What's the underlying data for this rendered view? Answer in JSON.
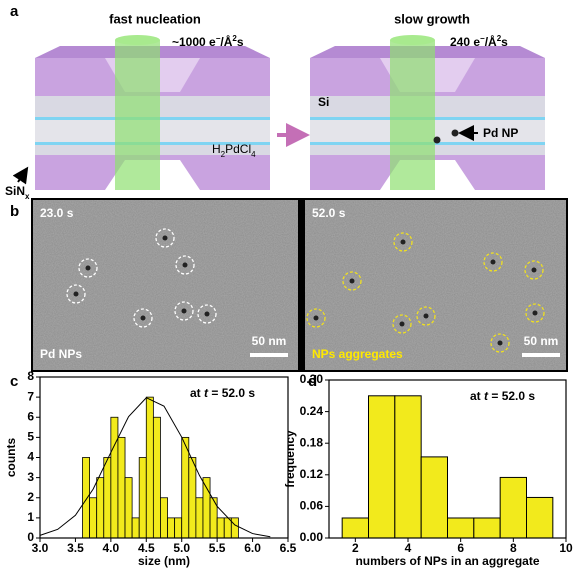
{
  "panel_labels": [
    "a",
    "b",
    "c",
    "d"
  ],
  "panel_a": {
    "left_title": "fast nucleation",
    "right_title": "slow growth",
    "left_dose": [
      "~1000 e",
      "−",
      "/Å",
      "2",
      "s"
    ],
    "right_dose": [
      "240 e",
      "−",
      "/Å",
      "2",
      "s"
    ],
    "precursor": [
      "H",
      "2",
      "PdCl",
      "4"
    ],
    "membrane": [
      "SiN",
      "x"
    ],
    "window": "Si",
    "particle": "Pd NP"
  },
  "panel_b": {
    "left_time": "23.0 s",
    "right_time": "52.0 s",
    "left_caption": "Pd NPs",
    "right_caption": "NPs aggregates",
    "scale_bars": [
      "50 nm",
      "50 nm"
    ]
  },
  "chart_data": [
    {
      "type": "histogram",
      "xlabel": "size (nm)",
      "ylabel": "counts",
      "annotation": [
        "at ",
        "t",
        " = 52.0 s"
      ],
      "bins": [
        3.6,
        3.7,
        3.8,
        3.9,
        4.0,
        4.1,
        4.2,
        4.3,
        4.4,
        4.5,
        4.6,
        4.7,
        4.8,
        4.9,
        5.0,
        5.1,
        5.2,
        5.3,
        5.4,
        5.5,
        5.6,
        5.7,
        5.8
      ],
      "values": [
        4,
        2,
        3,
        4,
        6,
        5,
        3,
        1,
        4,
        7,
        6,
        2,
        1,
        1,
        5,
        4,
        2,
        3,
        2,
        1,
        1,
        1
      ],
      "color": "#f2ea1c",
      "fit": {
        "x": [
          3.0,
          3.25,
          3.5,
          3.75,
          4.0,
          4.25,
          4.5,
          4.75,
          5.0,
          5.25,
          5.5,
          5.75,
          6.0,
          6.25
        ],
        "values": [
          0.13,
          0.43,
          1.13,
          2.43,
          4.25,
          6.03,
          6.97,
          6.55,
          5.01,
          3.11,
          1.57,
          0.65,
          0.22,
          0.06
        ]
      },
      "xlim": [
        3.0,
        6.5
      ],
      "xticks": [
        {
          "value": 3.0,
          "label": "3.0"
        },
        {
          "value": 3.5,
          "label": "3.5"
        },
        {
          "value": 4.0,
          "label": "4.0"
        },
        {
          "value": 4.5,
          "label": "4.5"
        },
        {
          "value": 5.0,
          "label": "5.0"
        },
        {
          "value": 5.5,
          "label": "5.5"
        },
        {
          "value": 6.0,
          "label": "6.0"
        },
        {
          "value": 6.5,
          "label": "6.5"
        }
      ],
      "ylim": [
        0,
        8
      ],
      "yticks": [
        0,
        1,
        2,
        3,
        4,
        5,
        6,
        7,
        8
      ]
    },
    {
      "type": "bar",
      "xlabel": "numbers of NPs in an aggregate",
      "ylabel": "frequency",
      "annotation": [
        "at ",
        "t",
        " = 52.0 s"
      ],
      "x": [
        2,
        3,
        4,
        5,
        6,
        7,
        8,
        9
      ],
      "values": [
        0.038,
        0.27,
        0.27,
        0.154,
        0.038,
        0.038,
        0.115,
        0.077
      ],
      "color": "#f2ea1c",
      "xlim": [
        1,
        10
      ],
      "xticks": [
        2,
        4,
        6,
        8,
        10
      ],
      "ylim": [
        0,
        0.3
      ],
      "yticks": [
        {
          "value": 0,
          "label": "0.00"
        },
        {
          "value": 0.06,
          "label": "0.06"
        },
        {
          "value": 0.12,
          "label": "0.12"
        },
        {
          "value": 0.18,
          "label": "0.18"
        },
        {
          "value": 0.24,
          "label": "0.24"
        },
        {
          "value": 0.3,
          "label": "0.30"
        }
      ]
    }
  ]
}
